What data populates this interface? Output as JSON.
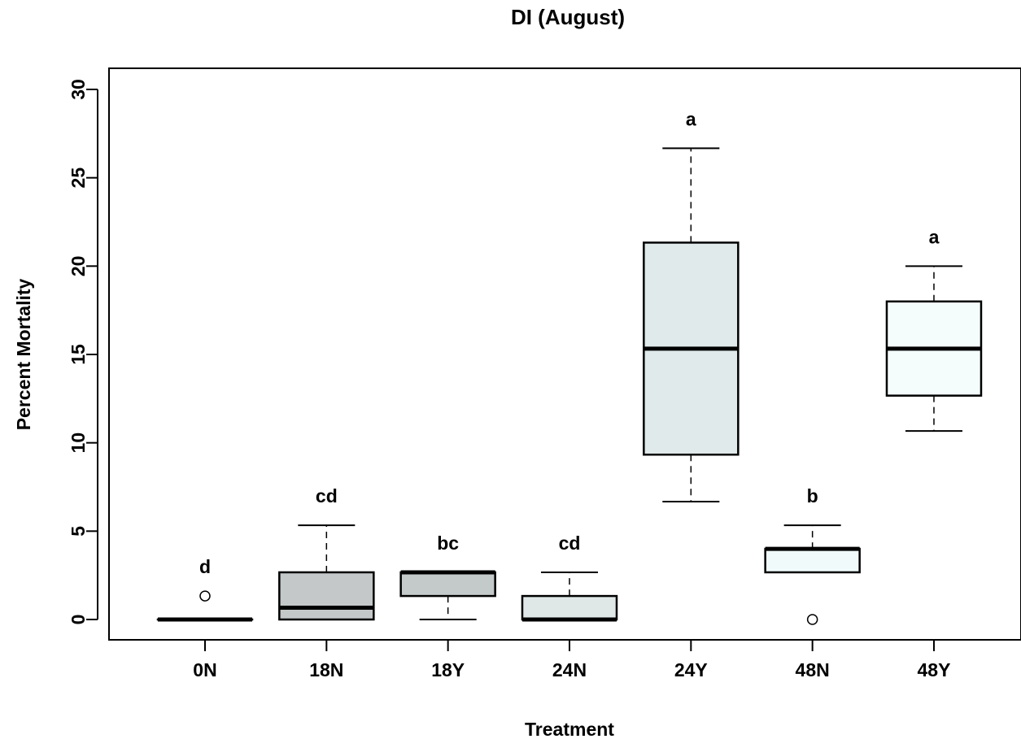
{
  "chart_data": {
    "type": "box",
    "title": "DI (August)",
    "xlabel": "Treatment",
    "ylabel": "Percent Mortality",
    "ylim": [
      0,
      30
    ],
    "yticks": [
      0,
      5,
      10,
      15,
      20,
      25,
      30
    ],
    "grid": false,
    "categories": [
      "0N",
      "18N",
      "18Y",
      "24N",
      "24Y",
      "48N",
      "48Y"
    ],
    "boxes": [
      {
        "category": "0N",
        "whisker_low": 0,
        "q1": 0,
        "median": 0,
        "q3": 0,
        "whisker_high": 0,
        "outliers": [
          1.33
        ],
        "letter": "d",
        "fill": "#d0d0d0"
      },
      {
        "category": "18N",
        "whisker_low": 0,
        "q1": 0,
        "median": 0.67,
        "q3": 2.67,
        "whisker_high": 5.33,
        "outliers": [],
        "letter": "cd",
        "fill": "#c4c8c8"
      },
      {
        "category": "18Y",
        "whisker_low": 0,
        "q1": 1.33,
        "median": 2.67,
        "q3": 2.67,
        "whisker_high": 2.67,
        "outliers": [],
        "letter": "bc",
        "fill": "#c4caca"
      },
      {
        "category": "24N",
        "whisker_low": 0,
        "q1": 0,
        "median": 0,
        "q3": 1.33,
        "whisker_high": 2.67,
        "outliers": [],
        "letter": "cd",
        "fill": "#dfe7e7"
      },
      {
        "category": "24Y",
        "whisker_low": 6.67,
        "q1": 9.33,
        "median": 15.33,
        "q3": 21.33,
        "whisker_high": 26.67,
        "outliers": [],
        "letter": "a",
        "fill": "#e0eaea"
      },
      {
        "category": "48N",
        "whisker_low": 2.67,
        "q1": 2.67,
        "median": 4,
        "q3": 4,
        "whisker_high": 5.33,
        "outliers": [
          0
        ],
        "letter": "b",
        "fill": "#f0fafa"
      },
      {
        "category": "48Y",
        "whisker_low": 10.67,
        "q1": 12.67,
        "median": 15.33,
        "q3": 18,
        "whisker_high": 20,
        "outliers": [],
        "letter": "a",
        "fill": "#f4fcfc"
      }
    ]
  }
}
